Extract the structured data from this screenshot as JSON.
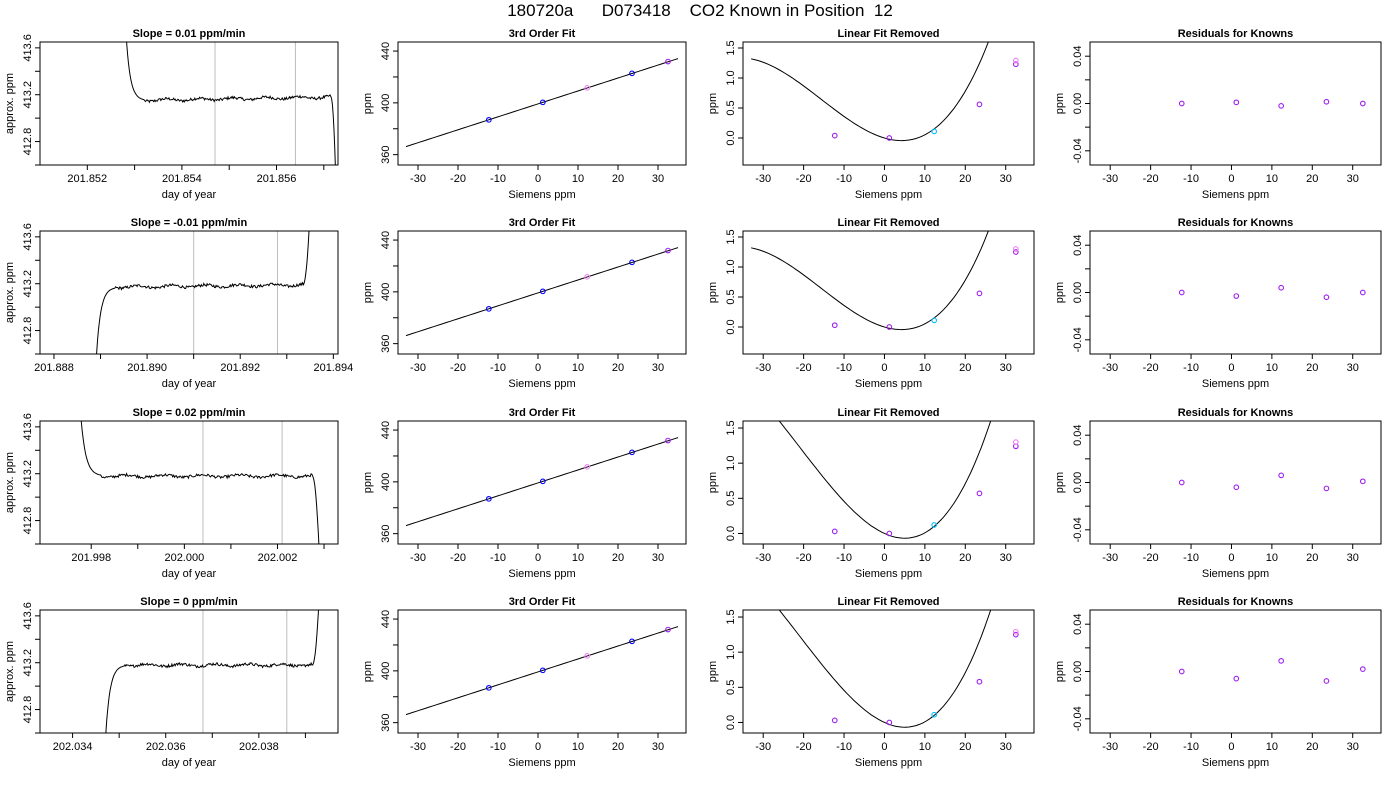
{
  "figure": {
    "title": "180720a      D073418    CO2 Known in Position  12"
  },
  "colors": {
    "axis": "#000000",
    "trace": "#000000",
    "window_line": "#bdbdbd",
    "point_blue": "#0000ff",
    "point_purple": "#a020f0",
    "point_violet": "#ee82ee",
    "point_cyan": "#00bfff"
  },
  "chart_data": [
    {
      "type": "line",
      "title": "Slope =  0.01  ppm/min",
      "xlabel": "day of year",
      "ylabel": "approx. ppm",
      "xlim": [
        201.851,
        201.8573
      ],
      "ylim": [
        412.6,
        413.65
      ],
      "xticks": [
        201.852,
        201.853,
        201.854,
        201.855,
        201.856,
        201.857
      ],
      "xticklabels": [
        "201.852",
        "",
        "201.854",
        "",
        "201.856",
        ""
      ],
      "yticks": [
        412.6,
        412.8,
        413.0,
        413.2,
        413.4,
        413.6
      ],
      "yticklabels": [
        "",
        "412.8",
        "",
        "413.2",
        "",
        "413.6"
      ],
      "grid": false,
      "window_lines": [
        201.8547,
        201.8564
      ],
      "trace": {
        "start": 201.8528,
        "end": 201.85725,
        "rise_from": 413.85,
        "level": 413.15,
        "drift": 0.03,
        "fall_to": 412.5,
        "fall_start": 201.85715,
        "noise": 0.012
      }
    },
    {
      "type": "scatter",
      "title": "3rd Order Fit",
      "xlabel": "Siemens ppm",
      "ylabel": "ppm",
      "xlim": [
        -35,
        37
      ],
      "ylim": [
        352,
        447
      ],
      "xticks": [
        -30,
        -20,
        -10,
        0,
        10,
        20,
        30
      ],
      "xticklabels": [
        "-30",
        "-20",
        "-10",
        "0",
        "10",
        "20",
        "30"
      ],
      "yticks": [
        360,
        380,
        400,
        420,
        440
      ],
      "yticklabels": [
        "360",
        "",
        "400",
        "",
        "440"
      ],
      "grid": false,
      "fit": {
        "x_from": -33,
        "x_to": 35,
        "slope": 1.0,
        "intercept": 399.2
      },
      "points": [
        {
          "x": -12.3,
          "y": 386.9
        },
        {
          "x": 1.2,
          "y": 400.4
        },
        {
          "x": 12.3,
          "y": 411.6
        },
        {
          "x": 23.5,
          "y": 422.8
        },
        {
          "x": 32.5,
          "y": 431.9
        }
      ]
    },
    {
      "type": "scatter",
      "title": "Linear Fit Removed",
      "xlabel": "Siemens ppm",
      "ylabel": "ppm",
      "xlim": [
        -35,
        37
      ],
      "ylim": [
        -0.45,
        1.6
      ],
      "xticks": [
        -30,
        -20,
        -10,
        0,
        10,
        20,
        30
      ],
      "xticklabels": [
        "-30",
        "-20",
        "-10",
        "0",
        "10",
        "20",
        "30"
      ],
      "yticks": [
        0.0,
        0.5,
        1.0,
        1.5
      ],
      "yticklabels": [
        "0.0",
        "0.5",
        "1.0",
        "1.5"
      ],
      "grid": false,
      "fit": {
        "x_from": -33,
        "x_to": 35,
        "cubic_b": 0.0206,
        "cubic_c": 0.000438,
        "linear": -0.0197,
        "intercept": 0.0
      },
      "points": [
        {
          "x": -12.3,
          "y": 0.04
        },
        {
          "x": 1.2,
          "y": 0.0
        },
        {
          "x": 12.3,
          "y": 0.11
        },
        {
          "x": 23.5,
          "y": 0.56
        },
        {
          "x": 32.5,
          "y": 1.23
        },
        {
          "x": 32.5,
          "y": 1.29
        }
      ]
    },
    {
      "type": "scatter",
      "title": "Residuals for Knowns",
      "xlabel": "Siemens ppm",
      "ylabel": "ppm",
      "xlim": [
        -35,
        37
      ],
      "ylim": [
        -0.052,
        0.052
      ],
      "xticks": [
        -30,
        -20,
        -10,
        0,
        10,
        20,
        30
      ],
      "xticklabels": [
        "-30",
        "-20",
        "-10",
        "0",
        "10",
        "20",
        "30"
      ],
      "yticks": [
        -0.04,
        -0.02,
        0.0,
        0.02,
        0.04
      ],
      "yticklabels": [
        "-0.04",
        "",
        "0.00",
        "",
        "0.04"
      ],
      "grid": false,
      "points": [
        {
          "x": -12.3,
          "y": 0.0
        },
        {
          "x": 1.2,
          "y": 0.001
        },
        {
          "x": 12.3,
          "y": -0.002
        },
        {
          "x": 23.5,
          "y": 0.0015
        },
        {
          "x": 32.5,
          "y": 0.0
        }
      ]
    },
    {
      "type": "line",
      "title": "Slope =  -0.01  ppm/min",
      "xlabel": "day of year",
      "ylabel": "approx. ppm",
      "xlim": [
        201.8877,
        201.8941
      ],
      "ylim": [
        412.6,
        413.65
      ],
      "xticks": [
        201.888,
        201.889,
        201.89,
        201.891,
        201.892,
        201.893,
        201.894
      ],
      "xticklabels": [
        "201.888",
        "",
        "201.890",
        "",
        "201.892",
        "",
        "201.894"
      ],
      "yticks": [
        412.6,
        412.8,
        413.0,
        413.2,
        413.4,
        413.6
      ],
      "yticklabels": [
        "",
        "412.8",
        "",
        "413.2",
        "",
        "413.6"
      ],
      "grid": false,
      "window_lines": [
        201.891,
        201.8928
      ],
      "trace": {
        "start": 201.8889,
        "end": 201.8935,
        "rise_from": 412.5,
        "level": 413.17,
        "drift": 0.02,
        "fall_to": 413.8,
        "fall_start": 201.89335,
        "noise": 0.012
      }
    },
    {
      "type": "scatter",
      "title": "3rd Order Fit",
      "xlabel": "Siemens ppm",
      "ylabel": "ppm",
      "xlim": [
        -35,
        37
      ],
      "ylim": [
        352,
        447
      ],
      "xticks": [
        -30,
        -20,
        -10,
        0,
        10,
        20,
        30
      ],
      "xticklabels": [
        "-30",
        "-20",
        "-10",
        "0",
        "10",
        "20",
        "30"
      ],
      "yticks": [
        360,
        380,
        400,
        420,
        440
      ],
      "yticklabels": [
        "360",
        "",
        "400",
        "",
        "440"
      ],
      "grid": false,
      "fit": {
        "x_from": -33,
        "x_to": 35,
        "slope": 1.0,
        "intercept": 399.2
      },
      "points": [
        {
          "x": -12.3,
          "y": 386.9
        },
        {
          "x": 1.2,
          "y": 400.4
        },
        {
          "x": 12.3,
          "y": 411.6
        },
        {
          "x": 23.5,
          "y": 422.8
        },
        {
          "x": 32.5,
          "y": 431.9
        }
      ]
    },
    {
      "type": "scatter",
      "title": "Linear Fit Removed",
      "xlabel": "Siemens ppm",
      "ylabel": "ppm",
      "xlim": [
        -35,
        37
      ],
      "ylim": [
        -0.45,
        1.6
      ],
      "xticks": [
        -30,
        -20,
        -10,
        0,
        10,
        20,
        30
      ],
      "xticklabels": [
        "-30",
        "-20",
        "-10",
        "0",
        "10",
        "20",
        "30"
      ],
      "yticks": [
        0.0,
        0.5,
        1.0,
        1.5
      ],
      "yticklabels": [
        "0.0",
        "0.5",
        "1.0",
        "1.5"
      ],
      "grid": false,
      "fit": {
        "x_from": -33,
        "x_to": 35,
        "cubic_b": 0.0206,
        "cubic_c": 0.000438,
        "linear": -0.0197,
        "intercept": 0.0
      },
      "points": [
        {
          "x": -12.3,
          "y": 0.03
        },
        {
          "x": 1.2,
          "y": 0.0
        },
        {
          "x": 12.3,
          "y": 0.11
        },
        {
          "x": 23.5,
          "y": 0.56
        },
        {
          "x": 32.5,
          "y": 1.25
        },
        {
          "x": 32.5,
          "y": 1.3
        }
      ]
    },
    {
      "type": "scatter",
      "title": "Residuals for Knowns",
      "xlabel": "Siemens ppm",
      "ylabel": "ppm",
      "xlim": [
        -35,
        37
      ],
      "ylim": [
        -0.052,
        0.052
      ],
      "xticks": [
        -30,
        -20,
        -10,
        0,
        10,
        20,
        30
      ],
      "xticklabels": [
        "-30",
        "-20",
        "-10",
        "0",
        "10",
        "20",
        "30"
      ],
      "yticks": [
        -0.04,
        -0.02,
        0.0,
        0.02,
        0.04
      ],
      "yticklabels": [
        "-0.04",
        "",
        "0.00",
        "",
        "0.04"
      ],
      "grid": false,
      "points": [
        {
          "x": -12.3,
          "y": 0.0
        },
        {
          "x": 1.2,
          "y": -0.003
        },
        {
          "x": 12.3,
          "y": 0.004
        },
        {
          "x": 23.5,
          "y": -0.004
        },
        {
          "x": 32.5,
          "y": 0.0
        }
      ]
    },
    {
      "type": "line",
      "title": "Slope =  0.02  ppm/min",
      "xlabel": "day of year",
      "ylabel": "approx. ppm",
      "xlim": [
        201.9969,
        202.0033
      ],
      "ylim": [
        412.6,
        413.65
      ],
      "xticks": [
        201.998,
        201.999,
        202.0,
        202.001,
        202.002,
        202.003
      ],
      "xticklabels": [
        "201.998",
        "",
        "202.000",
        "",
        "202.002",
        ""
      ],
      "yticks": [
        412.6,
        412.8,
        413.0,
        413.2,
        413.4,
        413.6
      ],
      "yticklabels": [
        "",
        "412.8",
        "",
        "413.2",
        "",
        "413.6"
      ],
      "grid": false,
      "window_lines": [
        202.0004,
        202.0021
      ],
      "trace": {
        "start": 201.99775,
        "end": 202.0029,
        "rise_from": 413.85,
        "level": 413.18,
        "drift": 0.0,
        "fall_to": 412.5,
        "fall_start": 202.00275,
        "noise": 0.012
      }
    },
    {
      "type": "scatter",
      "title": "3rd Order Fit",
      "xlabel": "Siemens ppm",
      "ylabel": "ppm",
      "xlim": [
        -35,
        37
      ],
      "ylim": [
        352,
        447
      ],
      "xticks": [
        -30,
        -20,
        -10,
        0,
        10,
        20,
        30
      ],
      "xticklabels": [
        "-30",
        "-20",
        "-10",
        "0",
        "10",
        "20",
        "30"
      ],
      "yticks": [
        360,
        380,
        400,
        420,
        440
      ],
      "yticklabels": [
        "360",
        "",
        "400",
        "",
        "440"
      ],
      "grid": false,
      "fit": {
        "x_from": -33,
        "x_to": 35,
        "slope": 1.0,
        "intercept": 399.2
      },
      "points": [
        {
          "x": -12.3,
          "y": 386.9
        },
        {
          "x": 1.2,
          "y": 400.4
        },
        {
          "x": 12.3,
          "y": 411.6
        },
        {
          "x": 23.5,
          "y": 422.8
        },
        {
          "x": 32.5,
          "y": 431.9
        }
      ]
    },
    {
      "type": "scatter",
      "title": "Linear Fit Removed",
      "xlabel": "Siemens ppm",
      "ylabel": "ppm",
      "xlim": [
        -35,
        37
      ],
      "ylim": [
        -0.15,
        1.6
      ],
      "xticks": [
        -30,
        -20,
        -10,
        0,
        10,
        20,
        30
      ],
      "xticklabels": [
        "-30",
        "-20",
        "-10",
        "0",
        "10",
        "20",
        "30"
      ],
      "yticks": [
        0.0,
        0.5,
        1.0,
        1.5
      ],
      "yticklabels": [
        "0.0",
        "0.5",
        "1.0",
        "1.5"
      ],
      "grid": false,
      "fit": {
        "x_from": -33,
        "x_to": 35,
        "cubic_b": 0.0233,
        "cubic_c": 0.000373,
        "linear": -0.0261,
        "intercept": 0.0
      },
      "points": [
        {
          "x": -12.3,
          "y": 0.03
        },
        {
          "x": 1.2,
          "y": 0.0
        },
        {
          "x": 12.3,
          "y": 0.12
        },
        {
          "x": 23.5,
          "y": 0.57
        },
        {
          "x": 32.5,
          "y": 1.24
        },
        {
          "x": 32.5,
          "y": 1.3
        }
      ]
    },
    {
      "type": "scatter",
      "title": "Residuals for Knowns",
      "xlabel": "Siemens ppm",
      "ylabel": "ppm",
      "xlim": [
        -35,
        37
      ],
      "ylim": [
        -0.052,
        0.052
      ],
      "xticks": [
        -30,
        -20,
        -10,
        0,
        10,
        20,
        30
      ],
      "xticklabels": [
        "-30",
        "-20",
        "-10",
        "0",
        "10",
        "20",
        "30"
      ],
      "yticks": [
        -0.04,
        -0.02,
        0.0,
        0.02,
        0.04
      ],
      "yticklabels": [
        "-0.04",
        "",
        "0.00",
        "",
        "0.04"
      ],
      "grid": false,
      "points": [
        {
          "x": -12.3,
          "y": 0.0
        },
        {
          "x": 1.2,
          "y": -0.004
        },
        {
          "x": 12.3,
          "y": 0.006
        },
        {
          "x": 23.5,
          "y": -0.005
        },
        {
          "x": 32.5,
          "y": 0.001
        }
      ]
    },
    {
      "type": "line",
      "title": "Slope =  0  ppm/min",
      "xlabel": "day of year",
      "ylabel": "approx. ppm",
      "xlim": [
        202.0333,
        202.0397
      ],
      "ylim": [
        412.6,
        413.65
      ],
      "xticks": [
        202.034,
        202.035,
        202.036,
        202.037,
        202.038,
        202.039
      ],
      "xticklabels": [
        "202.034",
        "",
        "202.036",
        "",
        "202.038",
        ""
      ],
      "yticks": [
        412.6,
        412.8,
        413.0,
        413.2,
        413.4,
        413.6
      ],
      "yticklabels": [
        "",
        "412.8",
        "",
        "413.2",
        "",
        "413.6"
      ],
      "grid": false,
      "window_lines": [
        202.0368,
        202.0386
      ],
      "trace": {
        "start": 202.0347,
        "end": 202.0393,
        "rise_from": 412.5,
        "level": 413.18,
        "drift": 0.0,
        "fall_to": 413.8,
        "fall_start": 202.03915,
        "noise": 0.012
      }
    },
    {
      "type": "scatter",
      "title": "3rd Order Fit",
      "xlabel": "Siemens ppm",
      "ylabel": "ppm",
      "xlim": [
        -35,
        37
      ],
      "ylim": [
        352,
        447
      ],
      "xticks": [
        -30,
        -20,
        -10,
        0,
        10,
        20,
        30
      ],
      "xticklabels": [
        "-30",
        "-20",
        "-10",
        "0",
        "10",
        "20",
        "30"
      ],
      "yticks": [
        360,
        380,
        400,
        420,
        440
      ],
      "yticklabels": [
        "360",
        "",
        "400",
        "",
        "440"
      ],
      "grid": false,
      "fit": {
        "x_from": -33,
        "x_to": 35,
        "slope": 1.0,
        "intercept": 399.2
      },
      "points": [
        {
          "x": -12.3,
          "y": 386.9
        },
        {
          "x": 1.2,
          "y": 400.4
        },
        {
          "x": 12.3,
          "y": 411.6
        },
        {
          "x": 23.5,
          "y": 422.8
        },
        {
          "x": 32.5,
          "y": 431.9
        }
      ]
    },
    {
      "type": "scatter",
      "title": "Linear Fit Removed",
      "xlabel": "Siemens ppm",
      "ylabel": "ppm",
      "xlim": [
        -35,
        37
      ],
      "ylim": [
        -0.15,
        1.6
      ],
      "xticks": [
        -30,
        -20,
        -10,
        0,
        10,
        20,
        30
      ],
      "xticklabels": [
        "-30",
        "-20",
        "-10",
        "0",
        "10",
        "20",
        "30"
      ],
      "yticks": [
        0.0,
        0.5,
        1.0,
        1.5
      ],
      "yticklabels": [
        "0.0",
        "0.5",
        "1.0",
        "1.5"
      ],
      "grid": false,
      "fit": {
        "x_from": -33,
        "x_to": 35,
        "cubic_b": 0.0233,
        "cubic_c": 0.000373,
        "linear": -0.0261,
        "intercept": 0.0
      },
      "points": [
        {
          "x": -12.3,
          "y": 0.03
        },
        {
          "x": 1.2,
          "y": 0.0
        },
        {
          "x": 12.3,
          "y": 0.11
        },
        {
          "x": 23.5,
          "y": 0.58
        },
        {
          "x": 32.5,
          "y": 1.25
        },
        {
          "x": 32.5,
          "y": 1.29
        }
      ]
    },
    {
      "type": "scatter",
      "title": "Residuals for Knowns",
      "xlabel": "Siemens ppm",
      "ylabel": "ppm",
      "xlim": [
        -35,
        37
      ],
      "ylim": [
        -0.052,
        0.052
      ],
      "xticks": [
        -30,
        -20,
        -10,
        0,
        10,
        20,
        30
      ],
      "xticklabels": [
        "-30",
        "-20",
        "-10",
        "0",
        "10",
        "20",
        "30"
      ],
      "yticks": [
        -0.04,
        -0.02,
        0.0,
        0.02,
        0.04
      ],
      "yticklabels": [
        "-0.04",
        "",
        "0.00",
        "",
        "0.04"
      ],
      "grid": false,
      "points": [
        {
          "x": -12.3,
          "y": 0.0
        },
        {
          "x": 1.2,
          "y": -0.006
        },
        {
          "x": 12.3,
          "y": 0.009
        },
        {
          "x": 23.5,
          "y": -0.008
        },
        {
          "x": 32.5,
          "y": 0.002
        }
      ]
    }
  ]
}
